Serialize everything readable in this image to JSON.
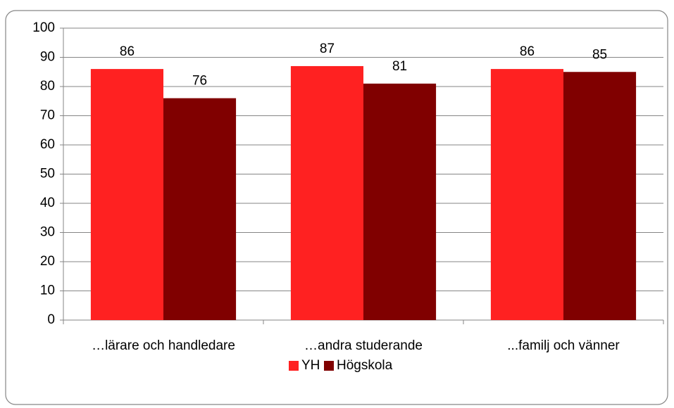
{
  "chart_data": {
    "type": "bar",
    "categories": [
      "…lärare och handledare",
      "…andra studerande",
      "...familj och vänner"
    ],
    "series": [
      {
        "name": "YH",
        "color": "#ff2121",
        "values": [
          86,
          87,
          86
        ]
      },
      {
        "name": "Högskola",
        "color": "#800000",
        "values": [
          76,
          81,
          85
        ]
      }
    ],
    "ylim": [
      0,
      100
    ],
    "yticks": [
      0,
      10,
      20,
      30,
      40,
      50,
      60,
      70,
      80,
      90,
      100
    ],
    "grid": true,
    "legend": "bottom"
  }
}
